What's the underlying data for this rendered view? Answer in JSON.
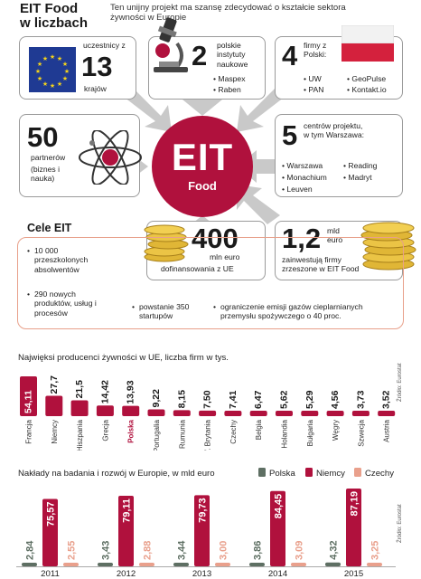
{
  "header": {
    "title_line1": "EIT Food",
    "title_line2": "w liczbach",
    "subtitle": "Ten unijny projekt ma szansę zdecydować o kształcie sektora żywności w Europie"
  },
  "center": {
    "label1": "EIT",
    "label2": "Food"
  },
  "stats": {
    "participants": {
      "label_top": "uczestnicy z",
      "number": "13",
      "label_bottom": "krajów"
    },
    "institutes": {
      "number": "2",
      "label": "polskie instytuty naukowe",
      "items": [
        "Maspex",
        "Raben"
      ]
    },
    "polish_firms": {
      "number": "4",
      "label": "firmy z Polski:",
      "items": [
        "UW",
        "PAN",
        "GeoPulse",
        "Kontakt.io"
      ]
    },
    "partners": {
      "number": "50",
      "label": "partnerów",
      "note": "(biznes i nauka)"
    },
    "centers": {
      "number": "5",
      "label": "centrów projektu, w tym Warszawa:",
      "items": [
        "Warszawa",
        "Reading",
        "Monachium",
        "Madryt",
        "Leuven"
      ]
    },
    "funding": {
      "number": "400",
      "unit": "mln euro",
      "label": "dofinansowania z UE"
    },
    "investment": {
      "number": "1,2",
      "unit": "mld euro",
      "label": "zainwestują firmy zrzeszone w EIT Food"
    }
  },
  "goals": {
    "title": "Cele EIT",
    "items": [
      "10 000 przeszkolonych absolwentów",
      "290 nowych produktów, usług i procesów",
      "powstanie 350 startupów",
      "ograniczenie emisji gazów cieplarnianych przemysłu spożywczego o 40 proc."
    ]
  },
  "colors": {
    "crimson": "#b0113d",
    "dark_green": "#5e6f63",
    "salmon": "#e9a08c",
    "eu_blue": "#1f3a93",
    "poland_red": "#d4213d"
  },
  "chart_data": [
    {
      "type": "bar",
      "title": "Najwięksi producenci żywności w UE, liczba firm w tys.",
      "source": "Źródło: Eurostat",
      "categories": [
        "Francja",
        "Niemcy",
        "Hiszpania",
        "Grecja",
        "Polska",
        "Portugalia",
        "Rumunia",
        "W. Brytania",
        "Czechy",
        "Belgia",
        "Holandia",
        "Bułgaria",
        "Węgry",
        "Szwecja",
        "Austria"
      ],
      "value_labels": [
        "54,11",
        "27,7",
        "21,5",
        "14,42",
        "13,93",
        "9,22",
        "8,15",
        "7,50",
        "7,41",
        "6,47",
        "5,62",
        "5,29",
        "4,56",
        "3,73",
        "3,52"
      ],
      "values": [
        54.11,
        27.7,
        21.5,
        14.42,
        13.93,
        9.22,
        8.15,
        7.5,
        7.41,
        6.47,
        5.62,
        5.29,
        4.56,
        3.73,
        3.52
      ],
      "highlight": "Polska"
    },
    {
      "type": "bar",
      "title": "Nakłady na badania i rozwój w Europie, w mld euro",
      "source": "Źródło: Eurostat",
      "legend_placement": "top-right",
      "categories": [
        "2011",
        "2012",
        "2013",
        "2014",
        "2015"
      ],
      "series": [
        {
          "name": "Polska",
          "values": [
            2.84,
            3.43,
            3.44,
            3.86,
            4.32
          ],
          "labels": [
            "2,84",
            "3,43",
            "3,44",
            "3,86",
            "4,32"
          ]
        },
        {
          "name": "Niemcy",
          "values": [
            75.57,
            79.11,
            79.73,
            84.45,
            87.19
          ],
          "labels": [
            "75,57",
            "79,11",
            "79,73",
            "84,45",
            "87,19"
          ]
        },
        {
          "name": "Czechy",
          "values": [
            2.55,
            2.88,
            3.0,
            3.09,
            3.25
          ],
          "labels": [
            "2,55",
            "2,88",
            "3,00",
            "3,09",
            "3,25"
          ]
        }
      ]
    }
  ]
}
